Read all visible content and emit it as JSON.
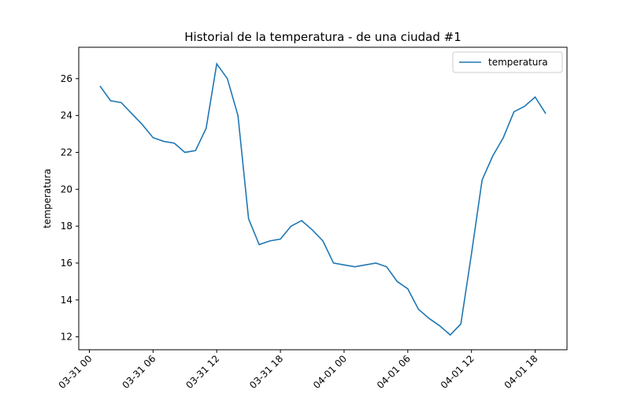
{
  "chart_data": {
    "type": "line",
    "title": "Historial de la temperatura - de una ciudad #1",
    "y_label": "temperatura",
    "x": [
      "03-31 01",
      "03-31 02",
      "03-31 03",
      "03-31 04",
      "03-31 05",
      "03-31 06",
      "03-31 07",
      "03-31 08",
      "03-31 09",
      "03-31 10",
      "03-31 11",
      "03-31 12",
      "03-31 13",
      "03-31 14",
      "03-31 15",
      "03-31 16",
      "03-31 17",
      "03-31 18",
      "03-31 19",
      "03-31 20",
      "03-31 21",
      "03-31 22",
      "03-31 23",
      "04-01 00",
      "04-01 01",
      "04-01 02",
      "04-01 03",
      "04-01 04",
      "04-01 05",
      "04-01 06",
      "04-01 07",
      "04-01 08",
      "04-01 09",
      "04-01 10",
      "04-01 11",
      "04-01 12",
      "04-01 13",
      "04-01 14",
      "04-01 15",
      "04-01 16",
      "04-01 17",
      "04-01 18",
      "04-01 19"
    ],
    "series": [
      {
        "name": "temperatura",
        "color": "#1f77b4",
        "values": [
          25.6,
          24.8,
          24.7,
          24.1,
          23.5,
          22.8,
          22.6,
          22.5,
          22.0,
          22.1,
          23.3,
          26.8,
          26.0,
          24.0,
          18.4,
          17.0,
          17.2,
          17.3,
          18.0,
          18.3,
          17.8,
          17.2,
          16.0,
          15.9,
          15.8,
          15.9,
          16.0,
          15.8,
          15.0,
          14.6,
          13.5,
          13.0,
          12.6,
          12.1,
          12.7,
          16.5,
          20.5,
          21.8,
          22.8,
          24.2,
          24.5,
          25.0,
          24.1
        ]
      }
    ],
    "xlim": [
      "03-30 23",
      "04-01 21"
    ],
    "xticks": [
      "03-31 00",
      "03-31 06",
      "03-31 12",
      "03-31 18",
      "04-01 00",
      "04-01 06",
      "04-01 12",
      "04-01 18"
    ],
    "ylim": [
      11.3,
      27.7
    ],
    "yticks": [
      12,
      14,
      16,
      18,
      20,
      22,
      24,
      26
    ],
    "legend": "upper right"
  }
}
